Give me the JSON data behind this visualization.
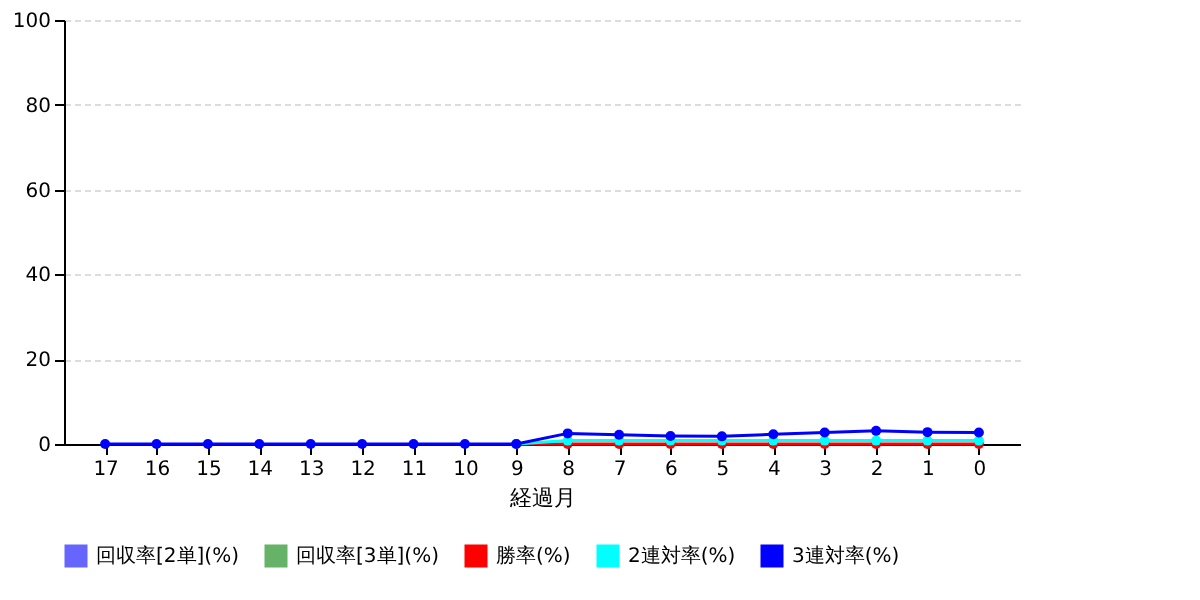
{
  "chart_data": {
    "type": "line",
    "xlabel": "経過月",
    "categories": [
      "17",
      "16",
      "15",
      "14",
      "13",
      "12",
      "11",
      "10",
      "9",
      "8",
      "7",
      "6",
      "5",
      "4",
      "3",
      "2",
      "1",
      "0"
    ],
    "series": [
      {
        "name": "回収率[2単](%)",
        "type": "bar",
        "color": "#6666ff",
        "values": [
          0,
          0,
          0,
          0,
          0,
          0,
          0,
          0,
          0,
          0,
          0,
          0,
          0,
          0,
          0,
          0,
          0,
          0
        ]
      },
      {
        "name": "回収率[3単](%)",
        "type": "bar",
        "color": "#66b266",
        "values": [
          0,
          0,
          0,
          0,
          0,
          0,
          0,
          0,
          0,
          0,
          0,
          0,
          0,
          0,
          0,
          0,
          0,
          0
        ]
      },
      {
        "name": "勝率(%)",
        "color": "#ff0000",
        "values": [
          null,
          null,
          null,
          null,
          null,
          null,
          null,
          null,
          0,
          0,
          0,
          0,
          0,
          0,
          0,
          0,
          0,
          0
        ]
      },
      {
        "name": "2連対率(%)",
        "color": "#00ffff",
        "values": [
          null,
          null,
          null,
          null,
          null,
          null,
          null,
          null,
          0,
          0.8,
          0.8,
          0.8,
          0.8,
          0.8,
          0.8,
          0.8,
          0.8,
          0.8
        ]
      },
      {
        "name": "3連対率(%)",
        "color": "#0000ff",
        "values": [
          0,
          0,
          0,
          0,
          0,
          0,
          0,
          0,
          0,
          2.5,
          2.2,
          1.9,
          1.8,
          2.3,
          2.7,
          3.1,
          2.8,
          2.7
        ]
      }
    ],
    "ylim": [
      0,
      100
    ],
    "yticks": [
      0,
      20,
      40,
      60,
      80,
      100
    ],
    "grid": "y",
    "legend": "bottom",
    "marker": "circle",
    "line_style": "solid"
  }
}
